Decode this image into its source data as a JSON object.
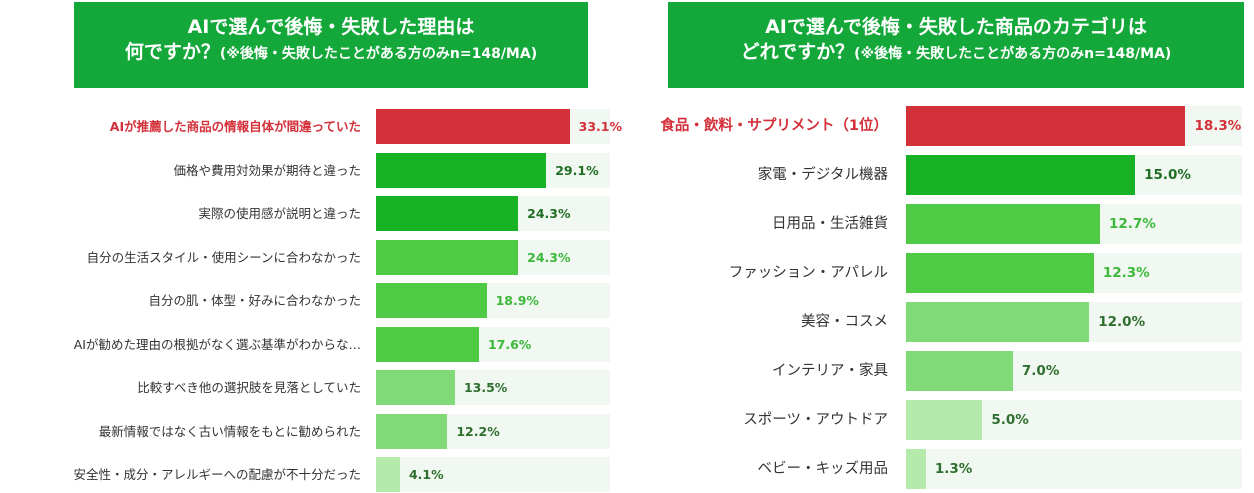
{
  "colors": {
    "header_bg": "#14a83a",
    "highlight": "#d3303a",
    "bar_dark": "#17b324",
    "bar_mid": "#4fca45",
    "bar_light": "#7fda77",
    "bar_pale": "#b4ebab",
    "track": "#f1f7f1"
  },
  "chart_data": [
    {
      "type": "bar",
      "orientation": "horizontal",
      "title": "AIで選んで後悔・失敗した理由は",
      "title_line2": "何ですか？",
      "subtitle": "(※後悔・失敗したことがある方のみn=148/MA)",
      "xlim": [
        0,
        40
      ],
      "categories": [
        "AIが推薦した商品の情報自体が間違っていた",
        "価格や費用対効果が期待と違った",
        "実際の使用感が説明と違った",
        "自分の生活スタイル・使用シーンに合わなかった",
        "自分の肌・体型・好みに合わなかった",
        "AIが勧めた理由の根拠がなく選ぶ基準がわからな…",
        "比較すべき他の選択肢を見落としていた",
        "最新情報ではなく古い情報をもとに勧められた",
        "安全性・成分・アレルギーへの配慮が不十分だった"
      ],
      "values": [
        33.1,
        29.1,
        24.3,
        24.3,
        18.9,
        17.6,
        13.5,
        12.2,
        4.1
      ],
      "value_labels": [
        "33.1%",
        "29.1%",
        "24.3%",
        "24.3%",
        "18.9%",
        "17.6%",
        "13.5%",
        "12.2%",
        "4.1%"
      ],
      "highlight_index": 0
    },
    {
      "type": "bar",
      "orientation": "horizontal",
      "title": "AIで選んで後悔・失敗した商品のカテゴリは",
      "title_line2": "どれですか？",
      "subtitle": "(※後悔・失敗したことがある方のみn=148/MA)",
      "xlim": [
        0,
        22
      ],
      "categories": [
        "食品・飲料・サプリメント（1位）",
        "家電・デジタル機器",
        "日用品・生活雑貨",
        "ファッション・アパレル",
        "美容・コスメ",
        "インテリア・家具",
        "スポーツ・アウトドア",
        "ベビー・キッズ用品"
      ],
      "values": [
        18.3,
        15.0,
        12.7,
        12.3,
        12.0,
        7.0,
        5.0,
        1.3
      ],
      "value_labels": [
        "18.3%",
        "15.0%",
        "12.7%",
        "12.3%",
        "12.0%",
        "7.0%",
        "5.0%",
        "1.3%"
      ],
      "highlight_index": 0
    }
  ]
}
